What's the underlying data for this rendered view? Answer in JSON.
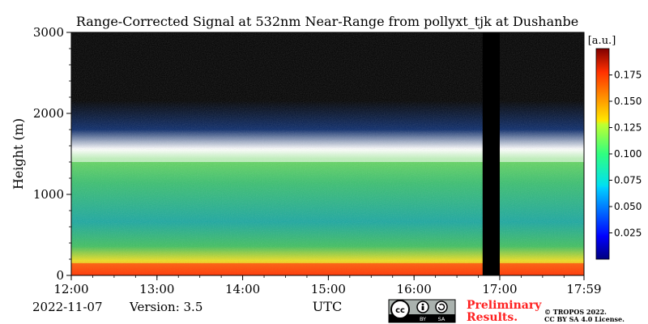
{
  "chart_data": {
    "type": "heatmap",
    "title": "Range-Corrected Signal at 532nm Near-Range from pollyxt_tjk at Dushanbe",
    "xlabel": "UTC",
    "ylabel": "Height (m)",
    "xlim": [
      "12:00",
      "17:59"
    ],
    "ylim": [
      0,
      3000
    ],
    "x_ticks": [
      "12:00",
      "13:00",
      "14:00",
      "15:00",
      "16:00",
      "17:00",
      "17:59"
    ],
    "y_ticks": [
      0,
      1000,
      2000,
      3000
    ],
    "colorbar": {
      "label": "[a.u.]",
      "range": [
        0.0,
        0.2
      ],
      "ticks": [
        0.025,
        0.05,
        0.075,
        0.1,
        0.125,
        0.15,
        0.175
      ],
      "colormap": "jet"
    },
    "data_gaps": [
      {
        "start": "16:48",
        "end": "17:00"
      }
    ],
    "features": [
      {
        "label": "boundary layer top",
        "height_m": [
          1400,
          1550
        ]
      },
      {
        "label": "surface layer high signal",
        "height_m": [
          0,
          150
        ]
      }
    ]
  },
  "footer": {
    "date": "2022-11-07",
    "version": "Version: 3.5",
    "preliminary": "Preliminary Results.",
    "preliminary_line1": "Preliminary",
    "preliminary_line2": "Results.",
    "copyright_line1": "© TROPOS 2022.",
    "copyright_line2": "CC BY SA 4.0 License."
  },
  "license_badge": {
    "cc": "cc",
    "by": "BY",
    "sa": "SA"
  },
  "colors": {
    "preliminary": "#ff2020",
    "background": "#000000"
  }
}
